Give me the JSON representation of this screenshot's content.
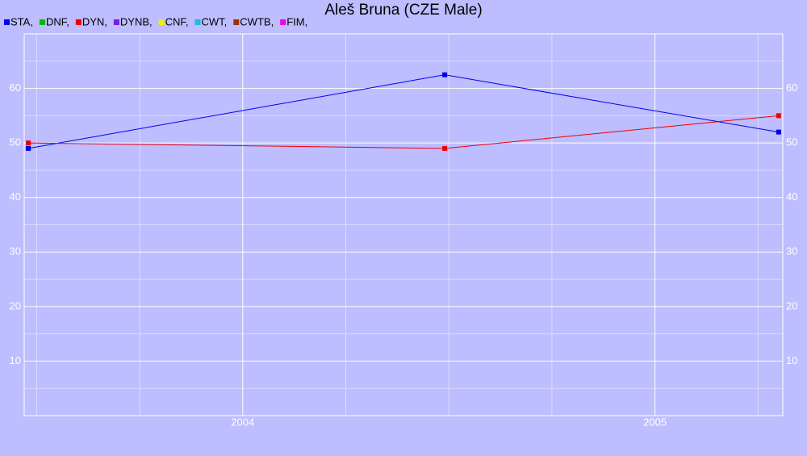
{
  "chart_data": {
    "type": "line",
    "title": "Aleš Bruna (CZE Male)",
    "x": [
      2003.48,
      2004.49,
      2005.3
    ],
    "series": [
      {
        "name": "STA,",
        "color": "#0000ee",
        "values": [
          49,
          62.5,
          52
        ]
      },
      {
        "name": "DNF,",
        "color": "#00bb00",
        "values": [
          null,
          null,
          null
        ]
      },
      {
        "name": "DYN,",
        "color": "#ee0000",
        "values": [
          50,
          49,
          55
        ]
      },
      {
        "name": "DYNB,",
        "color": "#7a1fe0",
        "values": [
          null,
          null,
          null
        ]
      },
      {
        "name": "CNF,",
        "color": "#eeee00",
        "values": [
          null,
          null,
          null
        ]
      },
      {
        "name": "CWT,",
        "color": "#22bbdd",
        "values": [
          null,
          null,
          null
        ]
      },
      {
        "name": "CWTB,",
        "color": "#993300",
        "values": [
          null,
          null,
          null
        ]
      },
      {
        "name": "FIM,",
        "color": "#ee00ee",
        "values": [
          null,
          null,
          null
        ]
      }
    ],
    "xlim": [
      2003.47,
      2005.31
    ],
    "xticks": [
      2004,
      2005
    ],
    "xminor": [
      2003.5,
      2003.75,
      2004.25,
      2004.5,
      2004.75,
      2005.25
    ],
    "ylim": [
      0,
      70
    ],
    "yticks": [
      10,
      20,
      30,
      40,
      50,
      60
    ],
    "yminor": [
      5,
      15,
      25,
      35,
      45,
      55,
      65
    ],
    "grid": true,
    "legend": "top-left"
  }
}
